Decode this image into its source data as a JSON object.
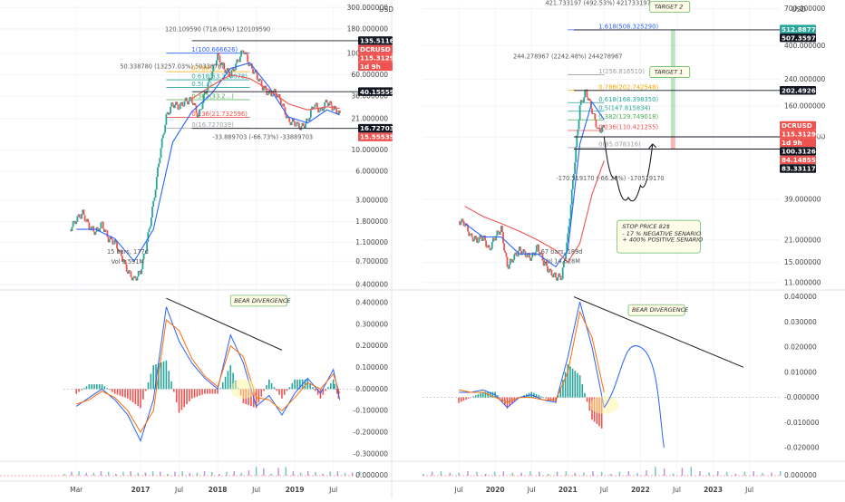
{
  "chart_data": [
    {
      "type": "line",
      "panel": "left",
      "symbol": "DCRUSD",
      "scale": "log",
      "x_tick_labels": [
        "Mar",
        "2017",
        "Jul",
        "2018",
        "Jul",
        "2019",
        "Jul"
      ],
      "y_tick_labels": [
        "300.000000",
        "180.000000",
        "100.000000",
        "60.000000",
        "36.000000",
        "21.000000",
        "10.000000",
        "6.000000",
        "3.000000",
        "1.800000",
        "1.100000",
        "0.700000",
        "0.400000"
      ],
      "y_tick_values": [
        300,
        180,
        100,
        60,
        36,
        21,
        10,
        6,
        3,
        1.8,
        1.1,
        0.7,
        0.4
      ],
      "currency": "USD",
      "price_tags": [
        {
          "label": "135.511617",
          "value": 135.511617,
          "color": "#131722"
        },
        {
          "label": "DCRUSD",
          "value": 118,
          "color": "#ef5350"
        },
        {
          "label": "115.312987",
          "value": 115.312987,
          "color": "#ef5350"
        },
        {
          "label": "1d 9h",
          "value": 104,
          "color": "#ef5350"
        },
        {
          "label": "40.155590",
          "value": 40.15559,
          "color": "#131722"
        },
        {
          "label": "16.727039",
          "value": 16.727039,
          "color": "#131722"
        },
        {
          "label": "15.555352",
          "value": 15.555352,
          "color": "#ef5350"
        }
      ],
      "fib_levels": [
        {
          "label": "1(100.666626)",
          "value": 100.666626,
          "color": "#2962ff"
        },
        {
          "label": "0.786(...)",
          "value": 64.7,
          "color": "#f7a600"
        },
        {
          "label": "0.618(53.320078)",
          "value": 53.320078,
          "color": "#26a69a"
        },
        {
          "label": "0.5(...)",
          "value": 44.5,
          "color": "#26a69a"
        },
        {
          "label": "0.382(33.2...)",
          "value": 33.2,
          "color": "#4caf50"
        },
        {
          "label": "0.236(21.732596)",
          "value": 21.732596,
          "color": "#ef5350"
        },
        {
          "label": "0(16.727039)",
          "value": 16.727039,
          "color": "#9e9e9e"
        }
      ],
      "annotations": [
        {
          "text": "120.109590 (718.06%) 120109590",
          "x": "2018-01",
          "y": 170
        },
        {
          "text": "50.338780 (13257.03%) 50338780",
          "x": "2017-06",
          "y": 70
        },
        {
          "text": "-33.889703 (-66.73%) -33889703",
          "x": "2018-08",
          "y": 13
        },
        {
          "text": "15 bars, 177d",
          "x": "2016-11",
          "y": 0.84
        },
        {
          "text": "Vol 5.591M",
          "x": "2016-11",
          "y": 0.66
        },
        {
          "text": "BEAR DIVERGENCE",
          "pane": "oscillator"
        }
      ],
      "series": [
        {
          "name": "price",
          "x": [
            "2016-02",
            "2016-03",
            "2016-04",
            "2016-05",
            "2016-06",
            "2016-07",
            "2016-08",
            "2016-09",
            "2016-10",
            "2016-11",
            "2016-12",
            "2017-01",
            "2017-02",
            "2017-03",
            "2017-04",
            "2017-05",
            "2017-06",
            "2017-07",
            "2017-08",
            "2017-09",
            "2017-10",
            "2017-11",
            "2017-12",
            "2018-01",
            "2018-02",
            "2018-03",
            "2018-04",
            "2018-05",
            "2018-06",
            "2018-07",
            "2018-08",
            "2018-09",
            "2018-10",
            "2018-11",
            "2018-12",
            "2019-01",
            "2019-02",
            "2019-03",
            "2019-04",
            "2019-05",
            "2019-06",
            "2019-07",
            "2019-08"
          ],
          "values": [
            1.5,
            1.9,
            2.2,
            1.6,
            1.4,
            1.7,
            1.2,
            1.1,
            0.8,
            0.55,
            0.45,
            0.55,
            1.1,
            2.8,
            9,
            22,
            30,
            28,
            32,
            33,
            22,
            38,
            60,
            95,
            70,
            60,
            80,
            110,
            75,
            60,
            45,
            38,
            40,
            30,
            20,
            19,
            17,
            20,
            30,
            25,
            32,
            27,
            24
          ]
        },
        {
          "name": "ma_blue",
          "x": [
            "2016-03",
            "2016-06",
            "2016-09",
            "2016-12",
            "2017-03",
            "2017-06",
            "2017-09",
            "2017-12",
            "2018-03",
            "2018-06",
            "2018-09",
            "2018-12",
            "2019-03",
            "2019-06",
            "2019-08"
          ],
          "values": [
            1.5,
            1.5,
            1.2,
            0.7,
            1.5,
            12,
            25,
            38,
            70,
            80,
            45,
            22,
            19,
            26,
            23
          ]
        },
        {
          "name": "ma_red",
          "x": [
            "2017-09",
            "2017-12",
            "2018-03",
            "2018-06",
            "2018-09",
            "2018-12",
            "2019-03",
            "2019-06",
            "2019-08"
          ],
          "values": [
            34,
            46,
            60,
            55,
            42,
            30,
            26,
            28,
            27
          ]
        }
      ],
      "oscillator": {
        "y_tick_labels": [
          "0.400000",
          "0.300000",
          "0.200000",
          "0.100000",
          "0.000000",
          "-0.100000",
          "-0.200000",
          "-0.300000"
        ],
        "y_tick_values": [
          0.4,
          0.3,
          0.2,
          0.1,
          0,
          -0.1,
          -0.2,
          -0.3
        ],
        "ylim": [
          -0.33,
          0.45
        ],
        "x": [
          "2016-03",
          "2016-05",
          "2016-07",
          "2016-09",
          "2016-11",
          "2017-01",
          "2017-03",
          "2017-05",
          "2017-07",
          "2017-09",
          "2017-11",
          "2018-01",
          "2018-03",
          "2018-05",
          "2018-07",
          "2018-09",
          "2018-11",
          "2019-01",
          "2019-03",
          "2019-05",
          "2019-07",
          "2019-08"
        ],
        "macd": [
          -0.08,
          -0.04,
          0.0,
          -0.05,
          -0.12,
          -0.24,
          -0.05,
          0.38,
          0.22,
          0.12,
          0.05,
          0.0,
          0.25,
          0.12,
          -0.08,
          -0.03,
          -0.12,
          -0.02,
          0.05,
          -0.02,
          0.09,
          -0.05
        ],
        "signal": [
          -0.07,
          -0.05,
          -0.01,
          -0.04,
          -0.1,
          -0.2,
          -0.1,
          0.32,
          0.27,
          0.14,
          0.06,
          0.01,
          0.2,
          0.15,
          -0.04,
          -0.05,
          -0.1,
          -0.04,
          0.03,
          0.0,
          0.07,
          -0.02
        ]
      }
    },
    {
      "type": "line",
      "panel": "right",
      "symbol": "DCRUSD",
      "scale": "log",
      "x_tick_labels": [
        "Jul",
        "2020",
        "Jul",
        "2021",
        "Jul",
        "2022",
        "Jul",
        "2023",
        "Jul"
      ],
      "y_tick_labels": [
        "700.000000",
        "400.000000",
        "240.000000",
        "160.000000",
        "100.000000",
        "39.000000",
        "21.000000",
        "15.000000",
        "11.000000"
      ],
      "y_tick_values": [
        700,
        400,
        240,
        160,
        100,
        39,
        21,
        15,
        11
      ],
      "currency": "USD",
      "price_tags": [
        {
          "label": "512.887723",
          "value": 512.887723,
          "color": "#26a69a"
        },
        {
          "label": "507.359747",
          "value": 507.359747,
          "color": "#131722"
        },
        {
          "label": "202.492669",
          "value": 202.492669,
          "color": "#131722"
        },
        {
          "label": "DCRUSD",
          "value": 119,
          "color": "#ef5350"
        },
        {
          "label": "115.312987",
          "value": 115.312987,
          "color": "#ef5350"
        },
        {
          "label": "1d 9h",
          "value": 106,
          "color": "#ef5350"
        },
        {
          "label": "100.312614",
          "value": 100.312614,
          "color": "#131722"
        },
        {
          "label": "84.148558",
          "value": 84.148558,
          "color": "#ef5350"
        },
        {
          "label": "83.331177",
          "value": 83.331177,
          "color": "#131722"
        }
      ],
      "fib_levels": [
        {
          "label": "1.618(508.325290)",
          "value": 508.32529,
          "color": "#2962ff"
        },
        {
          "label": "1(256.816510)",
          "value": 256.81651,
          "color": "#9e9e9e"
        },
        {
          "label": "0.786(202.742548)",
          "value": 202.742548,
          "color": "#f7a600"
        },
        {
          "label": "0.618(168.398350)",
          "value": 168.39835,
          "color": "#26a69a"
        },
        {
          "label": "0.5(147.815834)",
          "value": 147.815834,
          "color": "#26a69a"
        },
        {
          "label": "0.382(129.749018)",
          "value": 129.749018,
          "color": "#4caf50"
        },
        {
          "label": "0.236(110.421255)",
          "value": 110.421255,
          "color": "#ef5350"
        },
        {
          "label": "0(85.078316)",
          "value": 85.078316,
          "color": "#9e9e9e"
        }
      ],
      "annotations": [
        {
          "text": "421.733197 (492.53%) 421733197",
          "x": "2021-06",
          "y": 740
        },
        {
          "text": "244.278967 (2242.48%) 244278967",
          "x": "2021-01",
          "y": 330
        },
        {
          "text": "-170.519170 (-66.22%) -170519170",
          "x": "2021-08",
          "y": 52
        },
        {
          "text": "67 bars, 189d",
          "x": "2020-12",
          "y": 17
        },
        {
          "text": "Vol 14.628M",
          "x": "2020-12",
          "y": 14.8
        },
        {
          "text": "TARGET 2",
          "x": "2022-03",
          "y": 700
        },
        {
          "text": "TARGET 1",
          "x": "2022-03",
          "y": 260
        },
        {
          "text": "STOP PRICE 82$",
          "x": "2021-10",
          "y": 25
        },
        {
          "text": "- 17 % NEGATIVE SENARIO",
          "x": "2021-10",
          "y": 22.5
        },
        {
          "text": "+ 400%  POSITIVE SENARIO",
          "x": "2021-10",
          "y": 20.5
        },
        {
          "text": "BEAR DIVERGENCE",
          "pane": "oscillator"
        }
      ],
      "series": [
        {
          "name": "price",
          "x": [
            "2019-07",
            "2019-08",
            "2019-09",
            "2019-10",
            "2019-11",
            "2019-12",
            "2020-01",
            "2020-02",
            "2020-03",
            "2020-04",
            "2020-05",
            "2020-06",
            "2020-07",
            "2020-08",
            "2020-09",
            "2020-10",
            "2020-11",
            "2020-12",
            "2021-01",
            "2021-02",
            "2021-03",
            "2021-04",
            "2021-05",
            "2021-06",
            "2021-07"
          ],
          "values": [
            28,
            27,
            22,
            21,
            22,
            18,
            22,
            25,
            14,
            16,
            18,
            17,
            16,
            19,
            15,
            13,
            12,
            12,
            22,
            60,
            160,
            200,
            150,
            110,
            115
          ]
        },
        {
          "name": "ma_blue",
          "x": [
            "2019-08",
            "2019-11",
            "2020-02",
            "2020-05",
            "2020-08",
            "2020-11",
            "2021-01",
            "2021-03",
            "2021-05",
            "2021-07"
          ],
          "values": [
            27,
            22,
            22,
            17,
            17,
            14,
            18,
            90,
            170,
            130
          ]
        },
        {
          "name": "ma_red",
          "x": [
            "2019-08",
            "2019-11",
            "2020-02",
            "2020-05",
            "2020-08",
            "2020-11",
            "2021-01",
            "2021-03",
            "2021-05",
            "2021-07"
          ],
          "values": [
            35,
            30,
            27,
            24,
            21,
            18,
            15,
            20,
            42,
            70
          ]
        }
      ],
      "projection": {
        "x": [
          "2021-07",
          "2021-09",
          "2021-11",
          "2022-01",
          "2022-03"
        ],
        "values": [
          100,
          55,
          40,
          48,
          90
        ]
      },
      "oscillator": {
        "y_tick_labels": [
          "0.040000",
          "0.030000",
          "0.020000",
          "0.010000",
          "-0.000000",
          "-0.010000",
          "-0.020000"
        ],
        "y_tick_values": [
          0.04,
          0.03,
          0.02,
          0.01,
          0,
          -0.01,
          -0.02
        ],
        "ylim": [
          -0.025,
          0.042
        ],
        "x": [
          "2019-07",
          "2019-09",
          "2019-11",
          "2020-01",
          "2020-03",
          "2020-05",
          "2020-07",
          "2020-09",
          "2020-11",
          "2021-01",
          "2021-03",
          "2021-05",
          "2021-07"
        ],
        "macd": [
          0.002,
          0.002,
          0.003,
          0.001,
          -0.004,
          0.0,
          0.001,
          -0.001,
          -0.002,
          0.016,
          0.038,
          0.02,
          -0.004
        ],
        "signal": [
          0.003,
          0.002,
          0.002,
          0.0,
          -0.002,
          0.0,
          0.0,
          -0.001,
          -0.001,
          0.01,
          0.034,
          0.024,
          0.002
        ]
      }
    }
  ]
}
